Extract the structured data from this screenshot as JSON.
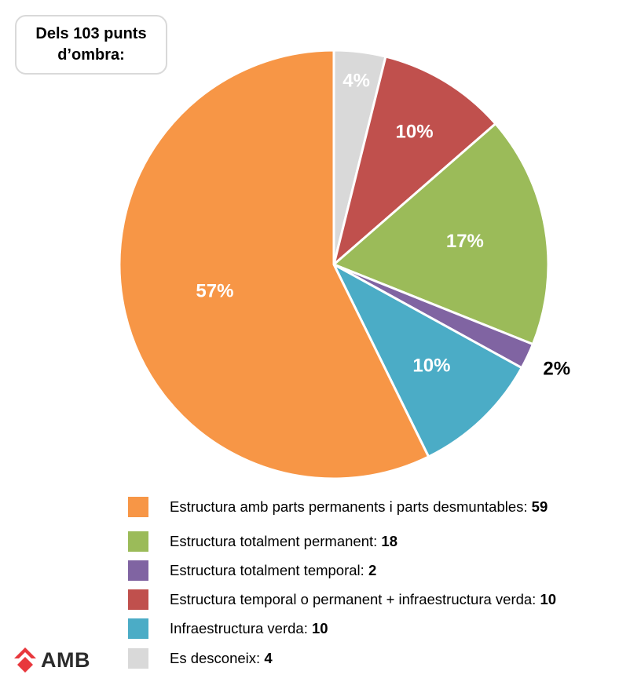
{
  "title": "Dels 103 punts d’ombra:",
  "chart_data": {
    "type": "pie",
    "start_angle_deg": 0,
    "direction": "clockwise",
    "slices": [
      {
        "label": "Es desconeix",
        "value": 4,
        "percent_label": "4%",
        "color": "#D9D9D9",
        "pct_color": "#ffffff"
      },
      {
        "label": "Estructura temporal o permanent + infraestructura verda",
        "value": 10,
        "percent_label": "10%",
        "color": "#C0504D",
        "pct_color": "#ffffff"
      },
      {
        "label": "Estructura totalment permanent",
        "value": 18,
        "percent_label": "17%",
        "color": "#9BBB59",
        "pct_color": "#ffffff"
      },
      {
        "label": "Estructura totalment temporal",
        "value": 2,
        "percent_label": "2%",
        "color": "#8064A2",
        "pct_color": "#000000"
      },
      {
        "label": "Infraestructura verda",
        "value": 10,
        "percent_label": "10%",
        "color": "#4BACC6",
        "pct_color": "#ffffff"
      },
      {
        "label": "Estructura amb parts permanents i parts desmuntables",
        "value": 59,
        "percent_label": "57%",
        "color": "#F79646",
        "pct_color": "#ffffff"
      }
    ]
  },
  "legend": [
    {
      "label": "Estructura amb parts permanents i parts desmuntables:",
      "count": "59",
      "color": "#F79646"
    },
    {
      "label": "Estructura totalment permanent:",
      "count": "18",
      "color": "#9BBB59"
    },
    {
      "label": "Estructura totalment temporal:",
      "count": "2",
      "color": "#8064A2"
    },
    {
      "label": "Estructura temporal o permanent + infraestructura verda:",
      "count": "10",
      "color": "#C0504D"
    },
    {
      "label": "Infraestructura verda:",
      "count": "10",
      "color": "#4BACC6"
    },
    {
      "label": "Es desconeix:",
      "count": "4",
      "color": "#D9D9D9"
    }
  ],
  "logo": {
    "text": "AMB",
    "color": "#E8383D"
  }
}
